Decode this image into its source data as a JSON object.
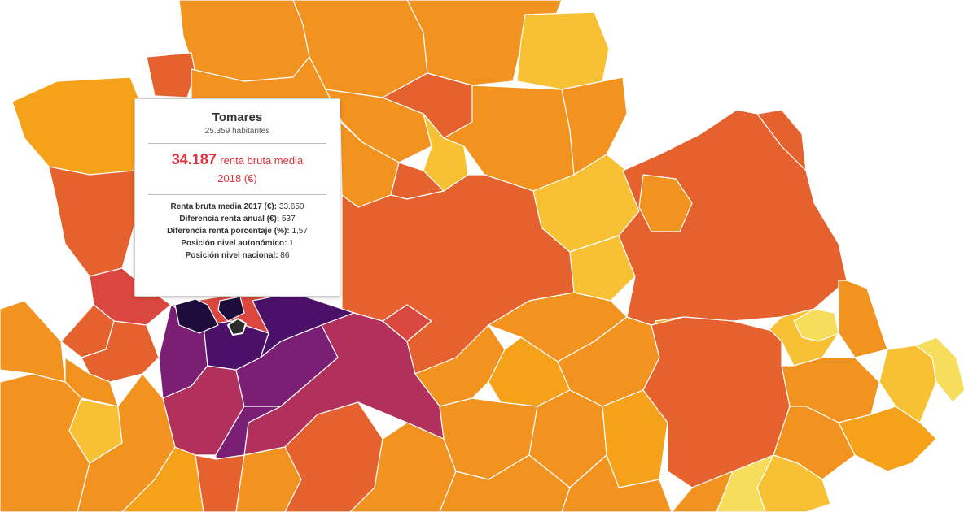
{
  "colors": {
    "background": "#ffffff",
    "scale_light": "#f6dd5c",
    "scale_yellow": "#f7c133",
    "scale_orange": "#f29320",
    "scale_deep_orange": "#e5612e",
    "scale_red": "#d9473f",
    "scale_crimson": "#b2305c",
    "scale_purple": "#7a1f74",
    "scale_violet": "#4b1169",
    "scale_darkest": "#1d0d3c",
    "highlight_red": "#e0313d"
  },
  "tooltip": {
    "municipality": "Tomares",
    "population": "25.359 habitantes",
    "income_value": "34.187",
    "income_label": "renta bruta media",
    "income_label_2": "2018 (€)",
    "rows": [
      {
        "label": "Renta bruta media 2017 (€):",
        "value": "33.650"
      },
      {
        "label": "Diferencia renta anual (€):",
        "value": "537"
      },
      {
        "label": "Diferencia renta porcentaje (%):",
        "value": "1,57"
      },
      {
        "label": "Posición nivel autonómico:",
        "value": "1"
      },
      {
        "label": "Posición nivel nacional:",
        "value": "86"
      }
    ]
  }
}
